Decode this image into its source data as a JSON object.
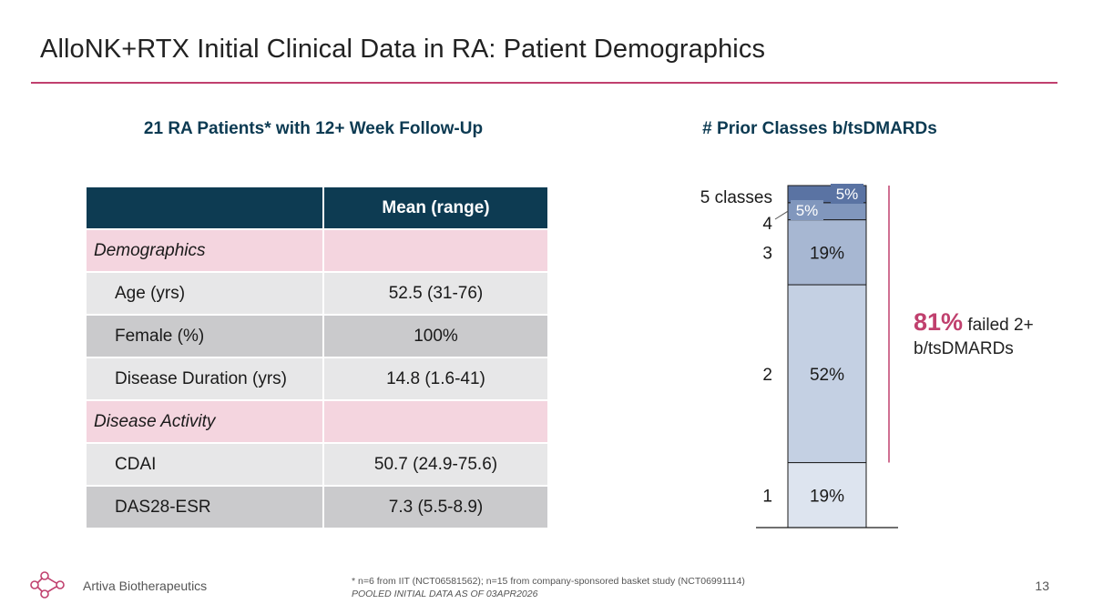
{
  "slide": {
    "title": "AlloNK+RTX Initial Clinical Data in RA: Patient Demographics"
  },
  "left": {
    "heading": "21 RA Patients* with 12+ Week Follow-Up",
    "table": {
      "header": [
        "",
        "Mean (range)"
      ],
      "rows": [
        {
          "type": "section",
          "label": "Demographics",
          "value": ""
        },
        {
          "type": "item",
          "label": "Age (yrs)",
          "value": "52.5 (31-76)"
        },
        {
          "type": "item",
          "label": "Female (%)",
          "value": "100%"
        },
        {
          "type": "item",
          "label": "Disease Duration (yrs)",
          "value": "14.8 (1.6-41)"
        },
        {
          "type": "section",
          "label": "Disease Activity",
          "value": ""
        },
        {
          "type": "item",
          "label": "CDAI",
          "value": "50.7 (24.9-75.6)"
        },
        {
          "type": "item",
          "label": "DAS28-ESR",
          "value": "7.3 (5.5-8.9)"
        }
      ]
    }
  },
  "right": {
    "heading": "# Prior Classes b/tsDMARDs"
  },
  "chart_data": {
    "type": "bar",
    "stacked": true,
    "title": "# Prior Classes b/tsDMARDs",
    "categories": [
      "1",
      "2",
      "3",
      "4",
      "5 classes"
    ],
    "values": [
      19,
      52,
      19,
      5,
      5
    ],
    "data_labels": [
      "19%",
      "52%",
      "19%",
      "5%",
      "5%"
    ],
    "unit": "%",
    "colors": [
      "#dde4ef",
      "#c4d0e3",
      "#a7b7d2",
      "#8197bd",
      "#5a73a3"
    ],
    "annotation": {
      "value": "81%",
      "text": "failed 2+ b/tsDMARDs",
      "range": [
        "2",
        "5 classes"
      ]
    }
  },
  "callout": {
    "value": "81%",
    "text_line1": "failed 2+",
    "text_line2": "b/tsDMARDs"
  },
  "footer": {
    "company": "Artiva Biotherapeutics",
    "footnote1": "* n=6 from IIT (NCT06581562); n=15 from company-sponsored basket study (NCT06991114)",
    "footnote2": "POOLED INITIAL DATA AS OF 03APR2026",
    "page_number": "13"
  },
  "colors": {
    "accent": "#c0406e",
    "navy": "#0d3b52",
    "section_fill": "#f4d5df"
  }
}
